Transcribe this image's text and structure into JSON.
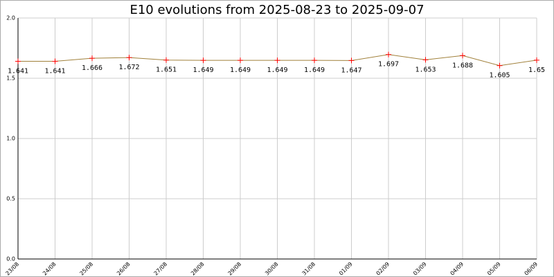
{
  "chart_data": {
    "type": "line",
    "title": "E10 evolutions from 2025-08-23 to 2025-09-07",
    "categories": [
      "23/08",
      "24/08",
      "25/08",
      "26/08",
      "27/08",
      "28/08",
      "29/08",
      "30/08",
      "31/08",
      "01/09",
      "02/09",
      "03/09",
      "04/09",
      "05/09",
      "06/09"
    ],
    "series": [
      {
        "name": "E10",
        "color": "#a0803a",
        "marker_color": "#ff0000",
        "values": [
          1.641,
          1.641,
          1.666,
          1.672,
          1.651,
          1.649,
          1.649,
          1.649,
          1.649,
          1.647,
          1.697,
          1.653,
          1.688,
          1.605,
          1.65
        ]
      }
    ],
    "ylim": [
      0,
      2
    ],
    "yticks": [
      {
        "value": 0,
        "label": "0.0"
      },
      {
        "value": 0.5,
        "label": "0.5"
      },
      {
        "value": 1,
        "label": "1.0"
      },
      {
        "value": 1.5,
        "label": "1.5"
      },
      {
        "value": 2,
        "label": "2.0"
      }
    ],
    "grid": true
  }
}
